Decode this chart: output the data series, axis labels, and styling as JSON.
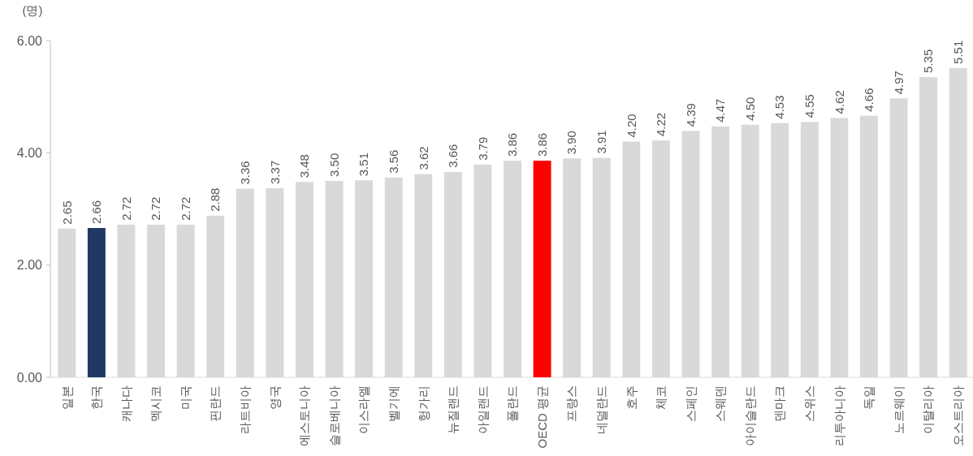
{
  "chart_data": {
    "type": "bar",
    "ylabel": "(명)",
    "categories": [
      "일본",
      "한국",
      "캐나다",
      "멕시코",
      "미국",
      "핀란드",
      "라트비아",
      "영국",
      "에스토니아",
      "슬로베니아",
      "이스라엘",
      "벨기에",
      "헝가리",
      "뉴질랜드",
      "아일랜드",
      "폴란드",
      "OECD 평균",
      "프랑스",
      "네덜란드",
      "호주",
      "체코",
      "스페인",
      "스웨덴",
      "아이슬란드",
      "덴마크",
      "스위스",
      "리투아니아",
      "독일",
      "노르웨이",
      "이탈리아",
      "오스트리아"
    ],
    "values": [
      2.65,
      2.66,
      2.72,
      2.72,
      2.72,
      2.88,
      3.36,
      3.37,
      3.48,
      3.5,
      3.51,
      3.56,
      3.62,
      3.66,
      3.79,
      3.86,
      3.86,
      3.9,
      3.91,
      4.2,
      4.22,
      4.39,
      4.47,
      4.5,
      4.53,
      4.55,
      4.62,
      4.66,
      4.97,
      5.35,
      5.51
    ],
    "colors": [
      "#d9d9d9",
      "#1f3864",
      "#d9d9d9",
      "#d9d9d9",
      "#d9d9d9",
      "#d9d9d9",
      "#d9d9d9",
      "#d9d9d9",
      "#d9d9d9",
      "#d9d9d9",
      "#d9d9d9",
      "#d9d9d9",
      "#d9d9d9",
      "#d9d9d9",
      "#d9d9d9",
      "#d9d9d9",
      "#ff0000",
      "#d9d9d9",
      "#d9d9d9",
      "#d9d9d9",
      "#d9d9d9",
      "#d9d9d9",
      "#d9d9d9",
      "#d9d9d9",
      "#d9d9d9",
      "#d9d9d9",
      "#d9d9d9",
      "#d9d9d9",
      "#d9d9d9",
      "#d9d9d9",
      "#d9d9d9"
    ],
    "value_labels": [
      "2.65",
      "2.66",
      "2.72",
      "2.72",
      "2.72",
      "2.88",
      "3.36",
      "3.37",
      "3.48",
      "3.50",
      "3.51",
      "3.56",
      "3.62",
      "3.66",
      "3.79",
      "3.86",
      "3.86",
      "3.90",
      "3.91",
      "4.20",
      "4.22",
      "4.39",
      "4.47",
      "4.50",
      "4.53",
      "4.55",
      "4.62",
      "4.66",
      "4.97",
      "5.35",
      "5.51"
    ],
    "ylim": [
      0,
      6
    ],
    "yticks": [
      {
        "value": 0,
        "label": "0.00"
      },
      {
        "value": 2,
        "label": "2.00"
      },
      {
        "value": 4,
        "label": "4.00"
      },
      {
        "value": 6,
        "label": "6.00"
      }
    ]
  }
}
